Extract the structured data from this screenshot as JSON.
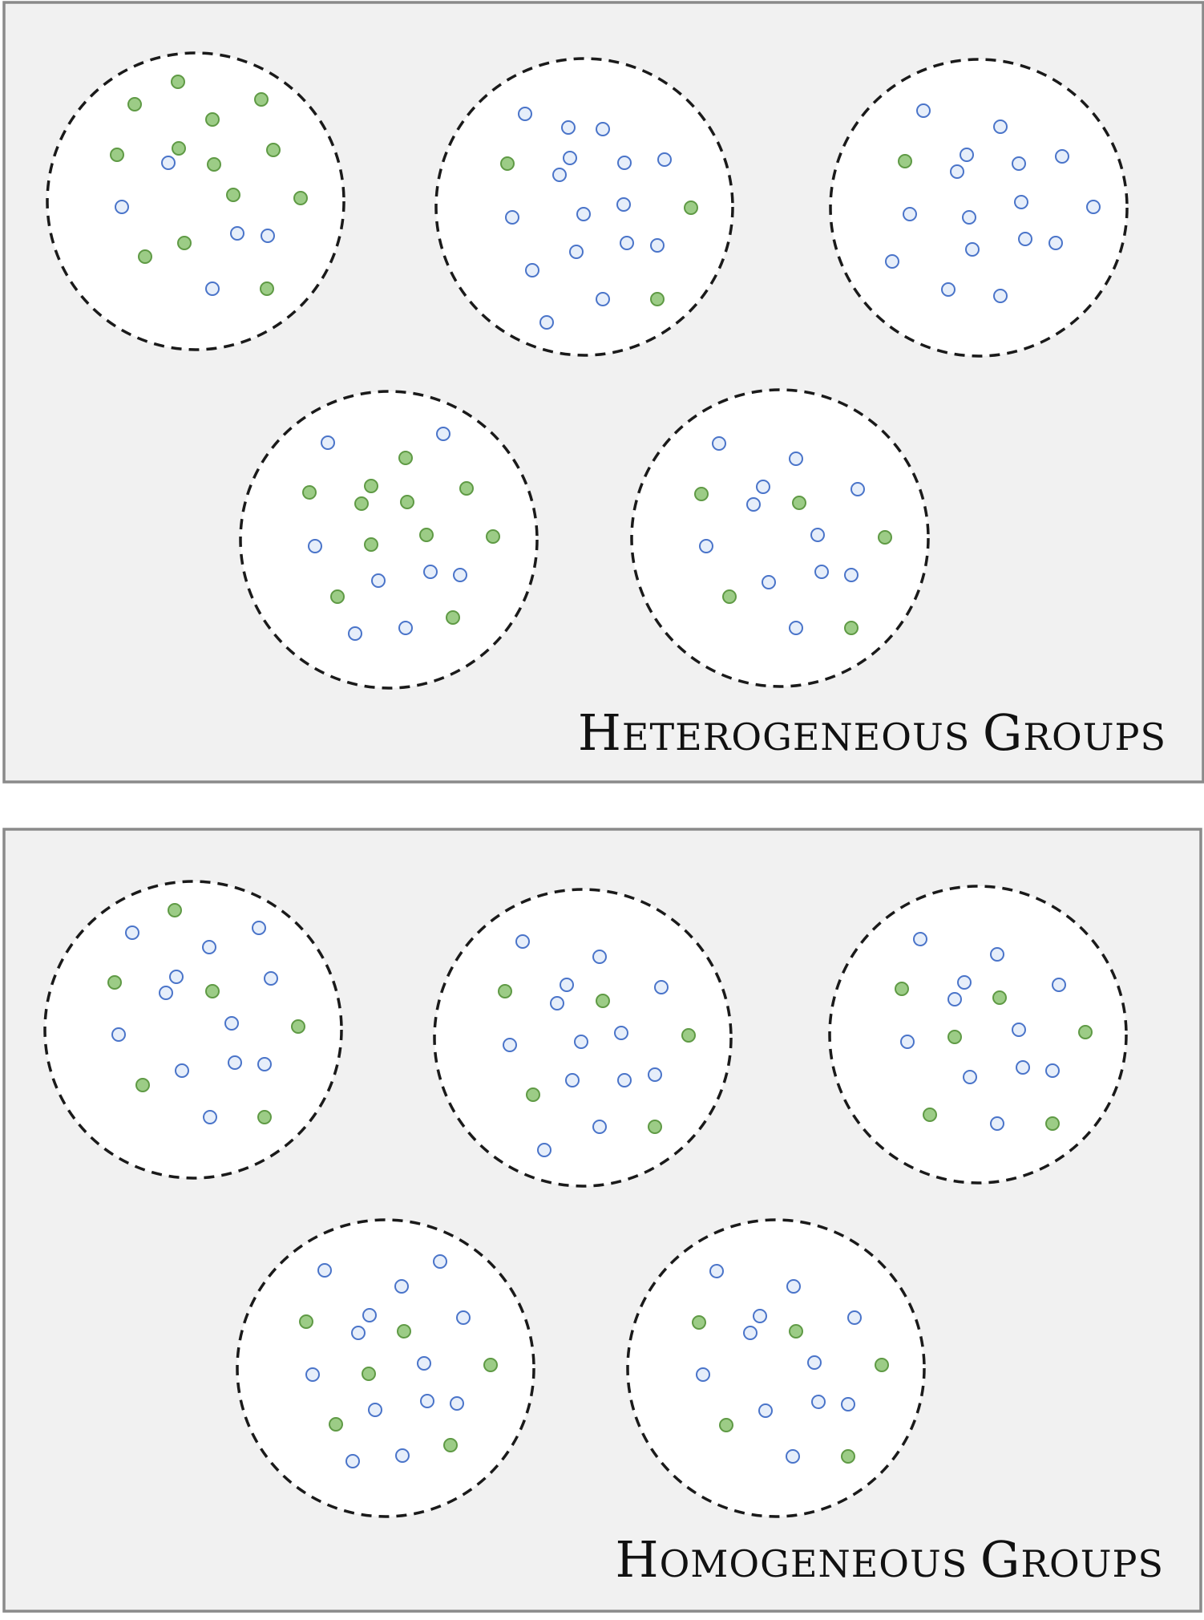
{
  "colors": {
    "panel_background": "#f1f1f1",
    "panel_border": "#8a8a8a",
    "group_fill": "#ffffff",
    "group_border": "#1a1a1a",
    "dot_green_fill": "#9ccc86",
    "dot_green_stroke": "#5f9a45",
    "dot_blue_fill": "#e6eefa",
    "dot_blue_stroke": "#4a74c9"
  },
  "panels": [
    {
      "title": "Heterogeneous Groups",
      "title_caps": [
        "H",
        "G"
      ],
      "title_rest": [
        "ETEROGENEOUS ",
        "ROUPS"
      ]
    },
    {
      "title": "Homogeneous Groups",
      "title_caps": [
        "H",
        "G"
      ],
      "title_rest": [
        "OMOGENEOUS ",
        "ROUPS"
      ]
    }
  ]
}
